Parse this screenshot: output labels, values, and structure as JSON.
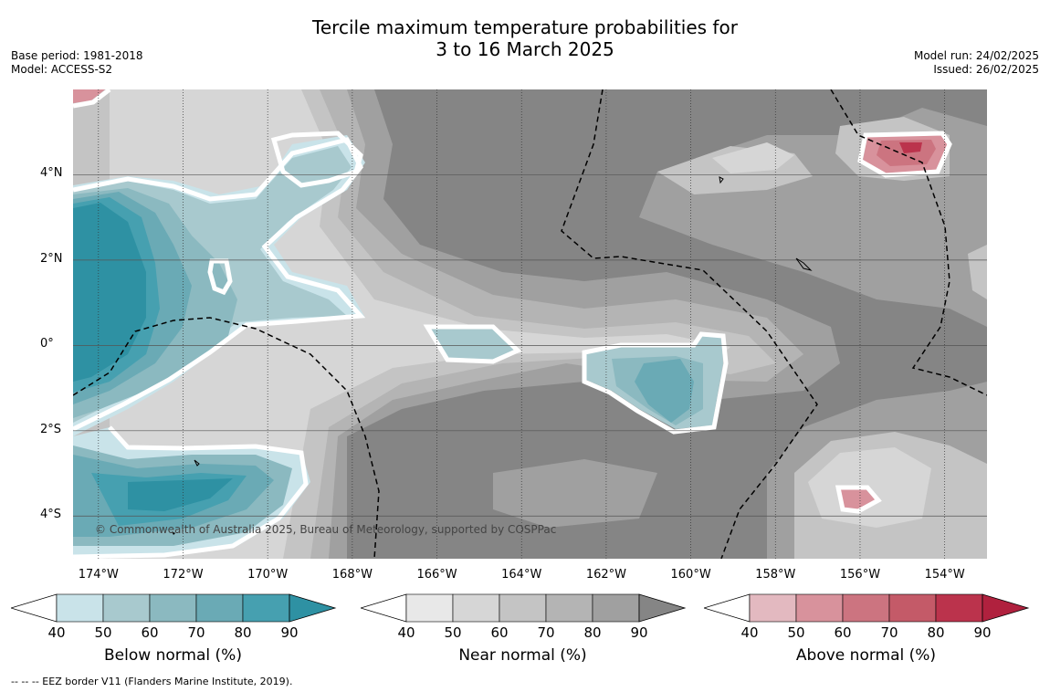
{
  "title_line1": "Tercile maximum temperature probabilities for",
  "title_line2": "3 to 16 March 2025",
  "base_period": "Base period: 1981-2018",
  "model": "Model: ACCESS-S2",
  "model_run": "Model run: 24/02/2025",
  "issued": "Issued: 26/02/2025",
  "copyright": "© Commonwealth of Australia 2025, Bureau of Meteorology, supported by COSPPac",
  "footer": "--  --  -- EEZ border V11 (Flanders Marine Institute, 2019).",
  "map": {
    "lon_range": [
      -174.6,
      -153.0
    ],
    "lat_range": [
      -5.0,
      6.0
    ],
    "lat_ticks": [
      "4°N",
      "2°N",
      "0°",
      "2°S",
      "4°S"
    ],
    "lon_ticks": [
      "174°W",
      "172°W",
      "170°W",
      "168°W",
      "166°W",
      "164°W",
      "162°W",
      "160°W",
      "158°W",
      "156°W",
      "154°W"
    ],
    "lat_tick_values": [
      4,
      2,
      0,
      -2,
      -4
    ],
    "lon_tick_values": [
      -174,
      -172,
      -170,
      -168,
      -166,
      -164,
      -162,
      -160,
      -158,
      -156,
      -154
    ],
    "background_color": "#858585"
  },
  "colorbars": [
    {
      "label": "Below normal (%)",
      "ticks": [
        "40",
        "50",
        "60",
        "70",
        "80",
        "90"
      ],
      "colors": [
        "#ffffff",
        "#c9e3e9",
        "#a8c9ce",
        "#8bb9c0",
        "#6aaab5",
        "#46a0b0",
        "#2e91a3"
      ]
    },
    {
      "label": "Near normal (%)",
      "ticks": [
        "40",
        "50",
        "60",
        "70",
        "80",
        "90"
      ],
      "colors": [
        "#ffffff",
        "#e8e8e8",
        "#d6d6d6",
        "#c4c4c4",
        "#b4b4b4",
        "#a0a0a0",
        "#858585"
      ]
    },
    {
      "label": "Above normal (%)",
      "ticks": [
        "40",
        "50",
        "60",
        "70",
        "80",
        "90"
      ],
      "colors": [
        "#ffffff",
        "#e3b9c0",
        "#d8929c",
        "#cc7480",
        "#c45a68",
        "#bb334c",
        "#b0213e"
      ]
    }
  ]
}
